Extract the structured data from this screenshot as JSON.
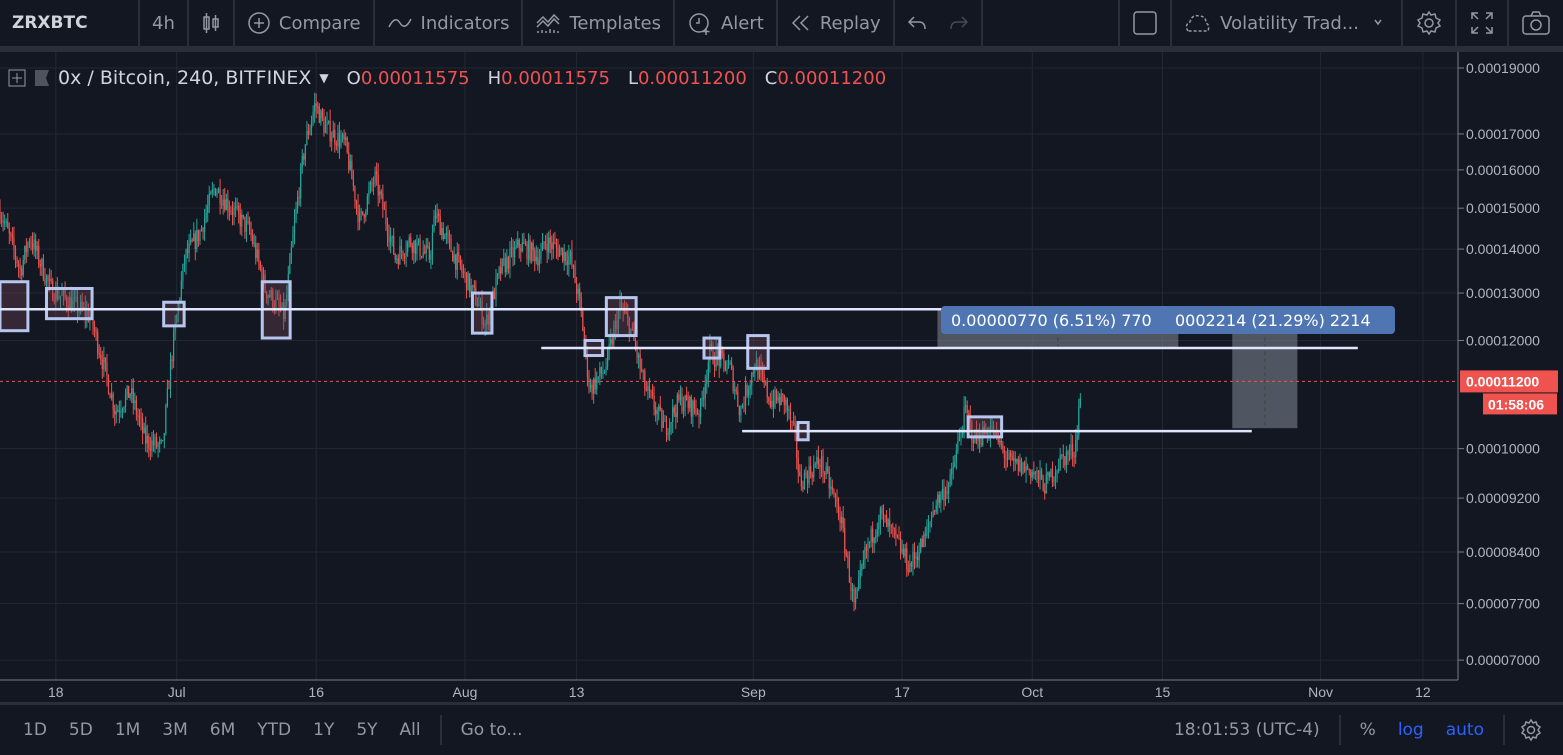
{
  "toolbar": {
    "symbol": "ZRXBTC",
    "interval": "4h",
    "compare": "Compare",
    "indicators": "Indicators",
    "templates": "Templates",
    "alert": "Alert",
    "replay": "Replay",
    "layout_name": "Volatility Trad..."
  },
  "legend": {
    "title": "0x / Bitcoin, 240, BITFINEX",
    "o_label": "O",
    "o": "0.00011575",
    "h_label": "H",
    "h": "0.00011575",
    "l_label": "L",
    "l": "0.00011200",
    "c_label": "C",
    "c": "0.00011200"
  },
  "measure_label": {
    "a": "0.00000770 (6.51%) 770",
    "b": "0002214 (21.29%) 2214"
  },
  "last_price": {
    "price": "0.00011200",
    "countdown": "01:58:06"
  },
  "bottom": {
    "ranges": [
      "1D",
      "5D",
      "1M",
      "3M",
      "6M",
      "YTD",
      "1Y",
      "5Y",
      "All"
    ],
    "goto": "Go to...",
    "time": "18:01:53 (UTC-4)",
    "percent": "%",
    "log": "log",
    "auto": "auto"
  },
  "colors": {
    "up": "#26a69a",
    "down": "#ef5350",
    "bg": "#131722",
    "grid": "#232733",
    "accent": "#2962ff",
    "label": "#4f76b3"
  },
  "chart_data": {
    "type": "candlestick",
    "symbol": "ZRXBTC",
    "scale": "log",
    "price_unit": "1e-8 BTC (satoshi)",
    "y_ticks": [
      "0.00019000",
      "0.00017000",
      "0.00016000",
      "0.00015000",
      "0.00014000",
      "0.00013000",
      "0.00012000",
      "0.00010000",
      "0.00009200",
      "0.00008400",
      "0.00007700",
      "0.00007000"
    ],
    "y_tick_values": [
      19000,
      17000,
      16000,
      15000,
      14000,
      13000,
      12000,
      10000,
      9200,
      8400,
      7700,
      7000
    ],
    "x_ticks": [
      {
        "label": "18",
        "day": 6
      },
      {
        "label": "Jul",
        "day": 19
      },
      {
        "label": "16",
        "day": 34
      },
      {
        "label": "Aug",
        "day": 50
      },
      {
        "label": "13",
        "day": 62
      },
      {
        "label": "Sep",
        "day": 81
      },
      {
        "label": "17",
        "day": 97
      },
      {
        "label": "Oct",
        "day": 111
      },
      {
        "label": "15",
        "day": 125
      },
      {
        "label": "Nov",
        "day": 142
      },
      {
        "label": "12",
        "day": 153
      }
    ],
    "day_origin": "Jun 12",
    "price_path": [
      [
        0,
        14950
      ],
      [
        2.2,
        13500
      ],
      [
        3.2,
        14300
      ],
      [
        5.4,
        13100
      ],
      [
        9.7,
        12500
      ],
      [
        12.4,
        10650
      ],
      [
        14,
        11000
      ],
      [
        15.6,
        10150
      ],
      [
        17.5,
        10000
      ],
      [
        18.3,
        11450
      ],
      [
        19.9,
        13800
      ],
      [
        21.5,
        14400
      ],
      [
        23.1,
        15550
      ],
      [
        24.7,
        15050
      ],
      [
        26.9,
        14400
      ],
      [
        28.5,
        13100
      ],
      [
        30.6,
        12500
      ],
      [
        31.7,
        14650
      ],
      [
        32.8,
        16700
      ],
      [
        33.9,
        17900
      ],
      [
        34.9,
        17200
      ],
      [
        37.1,
        16700
      ],
      [
        38.7,
        14650
      ],
      [
        40.3,
        15800
      ],
      [
        42.5,
        13800
      ],
      [
        44.1,
        14200
      ],
      [
        46.2,
        13800
      ],
      [
        46.8,
        14850
      ],
      [
        48.9,
        13800
      ],
      [
        51.6,
        12700
      ],
      [
        52.2,
        12300
      ],
      [
        53.8,
        13500
      ],
      [
        55.9,
        14100
      ],
      [
        58.1,
        13800
      ],
      [
        58.6,
        14200
      ],
      [
        61.3,
        13800
      ],
      [
        62.4,
        12700
      ],
      [
        63.4,
        11050
      ],
      [
        65.1,
        11450
      ],
      [
        66.7,
        12700
      ],
      [
        67.7,
        12300
      ],
      [
        69.4,
        11050
      ],
      [
        71.5,
        10350
      ],
      [
        73.1,
        10850
      ],
      [
        75.3,
        10650
      ],
      [
        76.3,
        11750
      ],
      [
        78.5,
        11450
      ],
      [
        79.6,
        10650
      ],
      [
        81.2,
        11550
      ],
      [
        82.8,
        10850
      ],
      [
        84.4,
        10850
      ],
      [
        85.5,
        10150
      ],
      [
        86,
        9450
      ],
      [
        88.2,
        9800
      ],
      [
        90.3,
        8950
      ],
      [
        91.9,
        7610
      ],
      [
        93,
        8350
      ],
      [
        94.6,
        8950
      ],
      [
        96.2,
        8600
      ],
      [
        97.8,
        8200
      ],
      [
        99.5,
        8600
      ],
      [
        100.5,
        9100
      ],
      [
        102.2,
        9450
      ],
      [
        103.8,
        10650
      ],
      [
        104.8,
        10150
      ],
      [
        106.5,
        10350
      ],
      [
        108.6,
        9750
      ],
      [
        110.8,
        9650
      ],
      [
        112.4,
        9400
      ],
      [
        114,
        9800
      ],
      [
        115.6,
        10000
      ],
      [
        116.3,
        11200
      ]
    ],
    "horizontal_lines": [
      {
        "price": 12650,
        "from_day": 0,
        "to_day": 146
      },
      {
        "price": 11850,
        "from_day": 58.2,
        "to_day": 146
      },
      {
        "price": 10300,
        "from_day": 79.8,
        "to_day": 134.6
      }
    ],
    "highlight_boxes": [
      {
        "from_day": 0,
        "to_day": 3,
        "low": 12200,
        "high": 13250
      },
      {
        "from_day": 5,
        "to_day": 9.9,
        "low": 12450,
        "high": 13100
      },
      {
        "from_day": 17.6,
        "to_day": 19.8,
        "low": 12300,
        "high": 12800
      },
      {
        "from_day": 28.2,
        "to_day": 31.2,
        "low": 12050,
        "high": 13250
      },
      {
        "from_day": 50.8,
        "to_day": 52.9,
        "low": 12150,
        "high": 13000
      },
      {
        "from_day": 65.2,
        "to_day": 68.4,
        "low": 12100,
        "high": 12900
      },
      {
        "from_day": 62.9,
        "to_day": 64.8,
        "low": 11700,
        "high": 12000
      },
      {
        "from_day": 75.7,
        "to_day": 77.4,
        "low": 11650,
        "high": 12050
      },
      {
        "from_day": 80.4,
        "to_day": 82.6,
        "low": 11450,
        "high": 12100
      },
      {
        "from_day": 85.8,
        "to_day": 86.9,
        "low": 10150,
        "high": 10450
      },
      {
        "from_day": 104.1,
        "to_day": 107.7,
        "low": 10200,
        "high": 10550
      }
    ],
    "measurements": [
      {
        "from_day": 100.8,
        "to_day": 126.7,
        "low": 11850,
        "high": 12650
      },
      {
        "from_day": 132.5,
        "to_day": 139.5,
        "low": 10350,
        "high": 12650
      }
    ],
    "last_price": 11200
  }
}
